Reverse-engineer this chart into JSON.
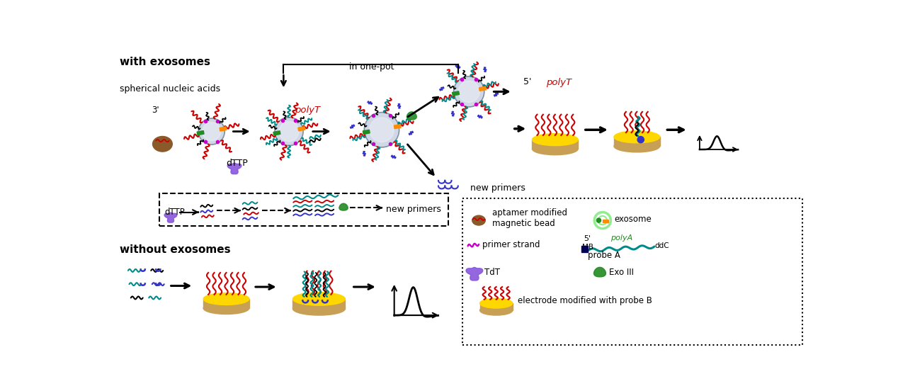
{
  "bg_color": "#ffffff",
  "label_with_exosomes": "with exosomes",
  "label_without_exosomes": "without exosomes",
  "label_spherical": "spherical nucleic acids",
  "label_dttp": "dTTP",
  "label_inone": "in one-pot",
  "label_poly_t": "polyT",
  "label_5prime": "5'",
  "label_new_primers": "new primers",
  "red": "#cc0000",
  "teal": "#008B8B",
  "black": "#000000",
  "blue": "#3333cc",
  "magenta": "#cc00cc",
  "green": "#228B22",
  "orange": "#FF8C00",
  "gold": "#FFD700",
  "tan": "#C8A055",
  "brown": "#8B5A2B",
  "purple": "#8855dd",
  "light_green": "#90EE90",
  "dark_blue": "#000055",
  "gray_core": "#d0d8e8",
  "gray_edge": "#8090a0"
}
